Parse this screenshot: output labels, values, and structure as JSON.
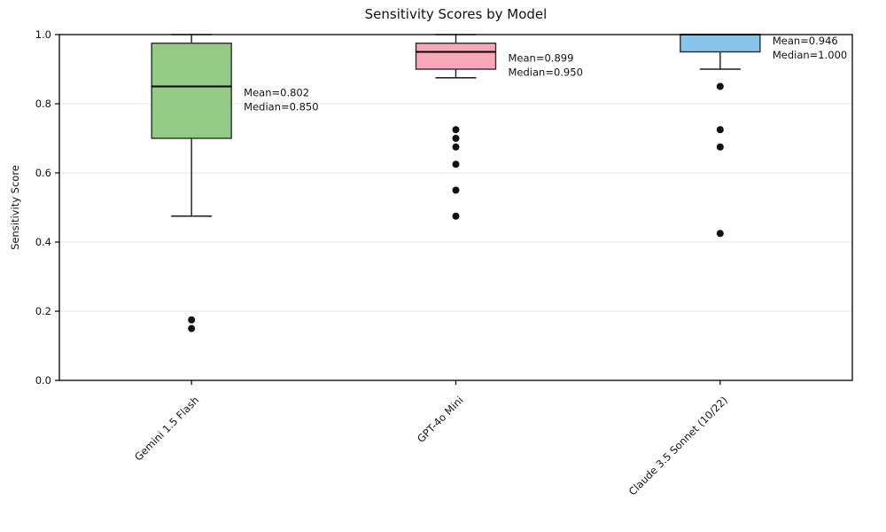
{
  "figure": {
    "background": "#ffffff"
  },
  "chart_data": {
    "type": "box",
    "title": "Sensitivity Scores by Model",
    "xlabel": "",
    "ylabel": "Sensitivity Score",
    "ylim": [
      0.0,
      1.0
    ],
    "yticks": [
      "0.0",
      "0.2",
      "0.4",
      "0.6",
      "0.8",
      "1.0"
    ],
    "ytick_values": [
      0.0,
      0.2,
      0.4,
      0.6,
      0.8,
      1.0
    ],
    "grid": "horizontal",
    "grid_color": "#e6e6e6",
    "legend": "none",
    "categories": [
      "Gemini 1.5 Flash",
      "GPT-4o Mini",
      "Claude 3.5 Sonnet (10/22)"
    ],
    "series": [
      {
        "model": "Gemini 1.5 Flash",
        "box_color": "#93cb85",
        "whisker_low": 0.475,
        "q1": 0.7,
        "median": 0.85,
        "q3": 0.975,
        "whisker_high": 1.0,
        "outliers": [
          0.175,
          0.15
        ],
        "mean": 0.802,
        "annotation_lines": [
          "Mean=0.802",
          "Median=0.850"
        ]
      },
      {
        "model": "GPT-4o Mini",
        "box_color": "#f9a8ba",
        "whisker_low": 0.875,
        "q1": 0.9,
        "median": 0.95,
        "q3": 0.975,
        "whisker_high": 1.0,
        "outliers": [
          0.725,
          0.7,
          0.675,
          0.625,
          0.55,
          0.475
        ],
        "mean": 0.899,
        "annotation_lines": [
          "Mean=0.899",
          "Median=0.950"
        ]
      },
      {
        "model": "Claude 3.5 Sonnet (10/22)",
        "box_color": "#87c5ea",
        "whisker_low": 0.9,
        "q1": 0.95,
        "median": 1.0,
        "q3": 1.0,
        "whisker_high": 1.0,
        "outliers": [
          0.85,
          0.725,
          0.675,
          0.425
        ],
        "mean": 0.946,
        "annotation_lines": [
          "Mean=0.946",
          "Median=1.000"
        ]
      }
    ]
  }
}
